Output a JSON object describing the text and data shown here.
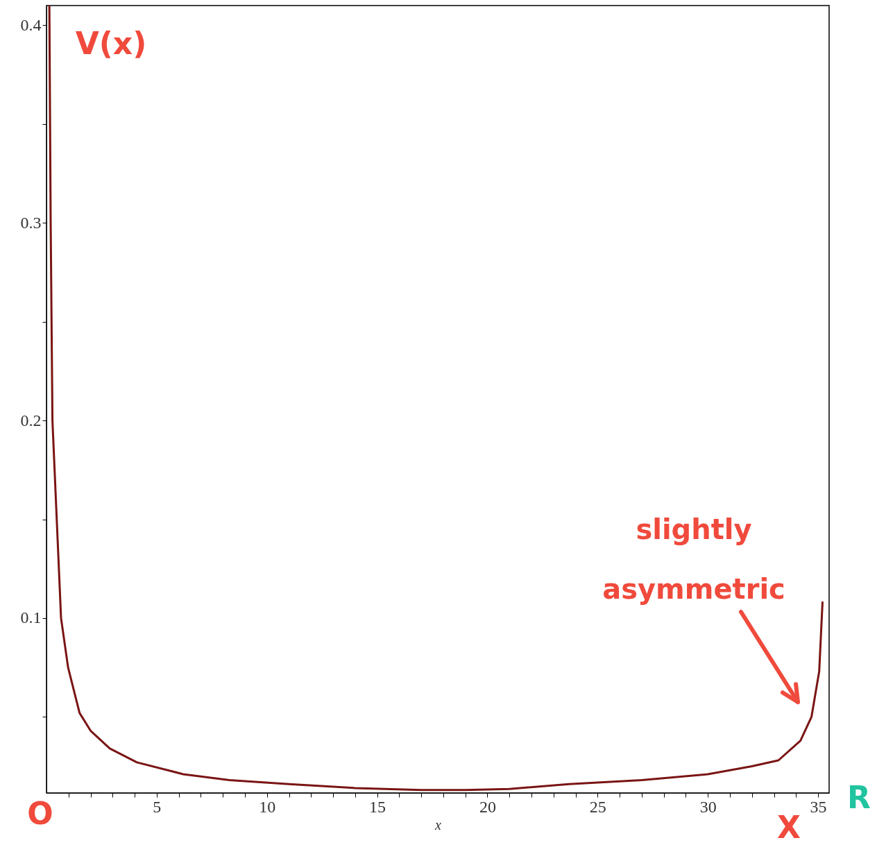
{
  "chart_data": {
    "type": "line",
    "xlabel": "x",
    "annotations": [
      "V(x)",
      "O",
      "X",
      "R",
      "slightly asymmetric"
    ],
    "x": [
      0.13,
      0.19,
      0.27,
      0.66,
      0.98,
      1.5,
      2.0,
      2.87,
      4.1,
      6.2,
      8.3,
      11,
      14,
      17,
      19,
      21,
      23.7,
      27,
      30,
      32,
      33.2,
      34.2,
      34.7,
      35.05,
      35.2
    ],
    "series": [
      {
        "color": "#7a1414",
        "values": [
          0.41,
          0.3,
          0.2,
          0.1,
          0.075,
          0.052,
          0.043,
          0.034,
          0.027,
          0.021,
          0.018,
          0.016,
          0.014,
          0.013,
          0.013,
          0.0135,
          0.016,
          0.018,
          0.021,
          0.025,
          0.028,
          0.038,
          0.05,
          0.073,
          0.108
        ]
      }
    ],
    "xlim": [
      0,
      35.5
    ],
    "ylim": [
      0.0115,
      0.41
    ],
    "xticks": [
      {
        "value": 1,
        "label": null
      },
      {
        "value": 2,
        "label": null
      },
      {
        "value": 3,
        "label": null
      },
      {
        "value": 4,
        "label": null
      },
      5,
      {
        "value": 6,
        "label": null
      },
      {
        "value": 7,
        "label": null
      },
      {
        "value": 8,
        "label": null
      },
      {
        "value": 9,
        "label": null
      },
      10,
      {
        "value": 11,
        "label": null
      },
      {
        "value": 12,
        "label": null
      },
      {
        "value": 13,
        "label": null
      },
      {
        "value": 14,
        "label": null
      },
      15,
      {
        "value": 16,
        "label": null
      },
      {
        "value": 17,
        "label": null
      },
      {
        "value": 18,
        "label": null
      },
      {
        "value": 19,
        "label": null
      },
      20,
      {
        "value": 21,
        "label": null
      },
      {
        "value": 22,
        "label": null
      },
      {
        "value": 23,
        "label": null
      },
      {
        "value": 24,
        "label": null
      },
      25,
      {
        "value": 26,
        "label": null
      },
      {
        "value": 27,
        "label": null
      },
      {
        "value": 28,
        "label": null
      },
      {
        "value": 29,
        "label": null
      },
      30,
      {
        "value": 31,
        "label": null
      },
      {
        "value": 32,
        "label": null
      },
      {
        "value": 33,
        "label": null
      },
      {
        "value": 34,
        "label": null
      },
      35
    ],
    "yticks": [
      {
        "value": 0.05,
        "label": null
      },
      0.1,
      {
        "value": 0.15,
        "label": null
      },
      0.2,
      {
        "value": 0.25,
        "label": null
      },
      0.3,
      {
        "value": 0.35,
        "label": null
      },
      0.4
    ],
    "grid": false,
    "legend": false,
    "marker": "none",
    "line_style": "solid"
  }
}
